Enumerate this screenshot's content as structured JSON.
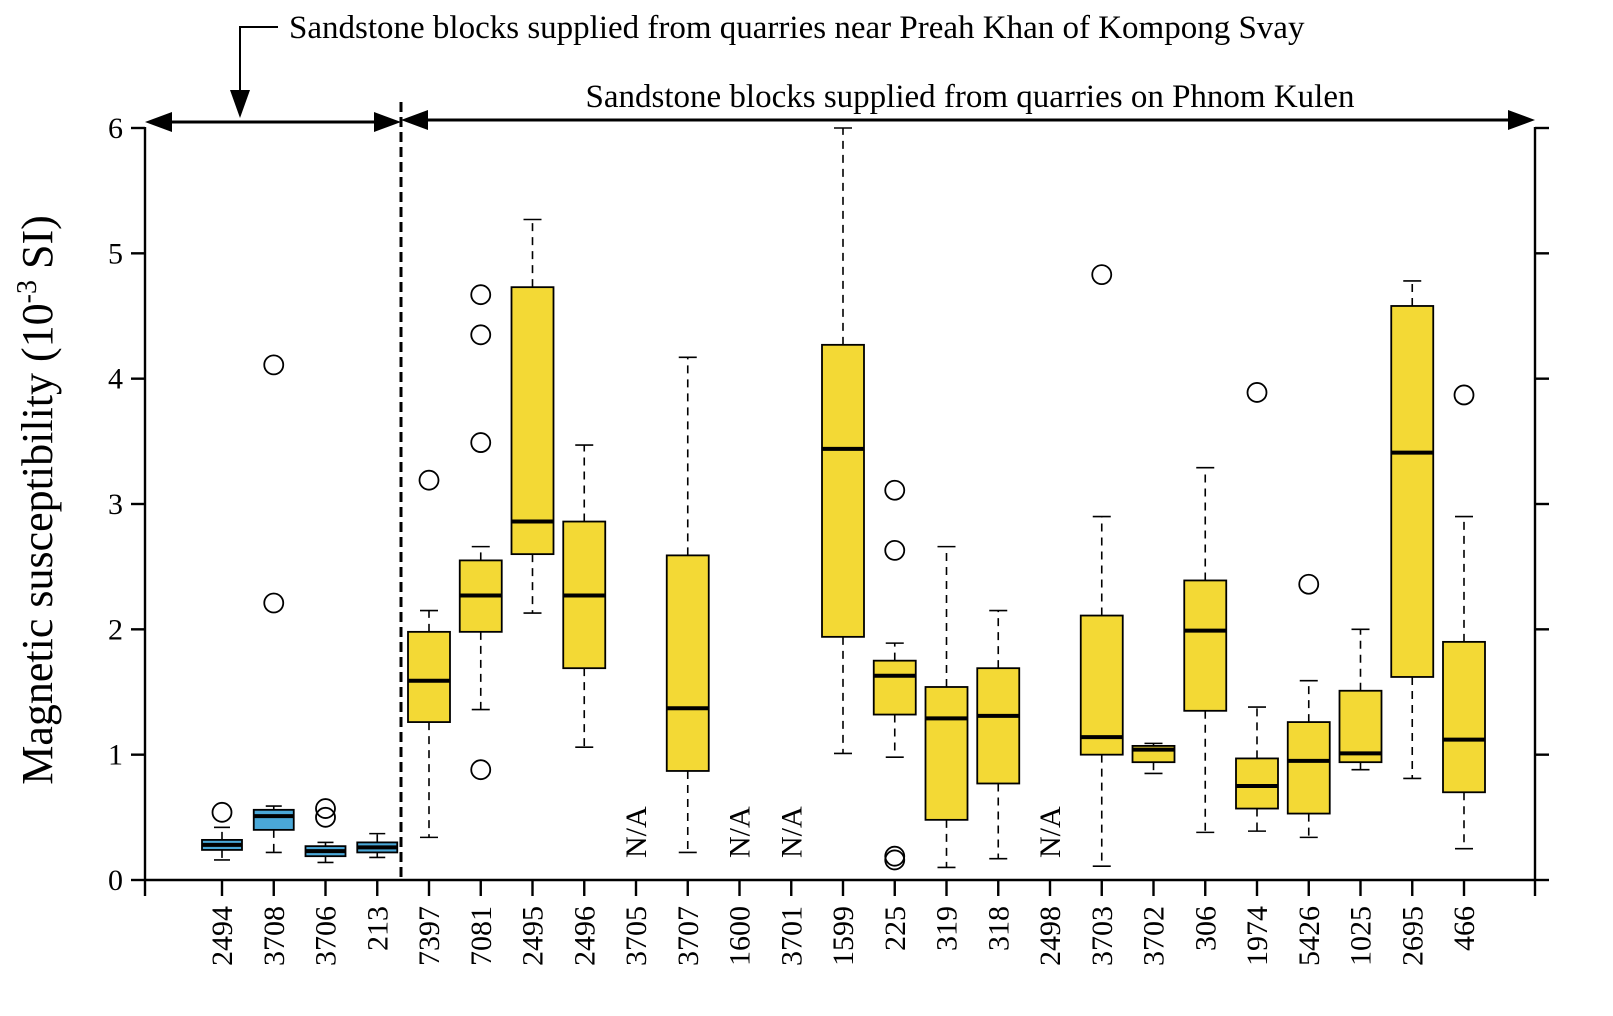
{
  "chart_data": {
    "type": "box",
    "ylabel": "Magnetic susceptibility (10",
    "ylabel_sup": "-3",
    "ylabel_unit": " SI)",
    "ylim": [
      0,
      6
    ],
    "yticks": [
      "0",
      "1",
      "2",
      "3",
      "4",
      "5",
      "6"
    ],
    "groups": [
      {
        "name": "Sandstone blocks supplied from quarries near Preah Khan of Kompong Svay",
        "color": "#4aa8d8",
        "categories": [
          "2494",
          "3708",
          "3706",
          "213"
        ]
      },
      {
        "name": "Sandstone blocks supplied from quarries on Phnom Kulen",
        "color": "#f3d935",
        "categories": [
          "7397",
          "7081",
          "2495",
          "2496",
          "3705",
          "3707",
          "1600",
          "3701",
          "1599",
          "225",
          "319",
          "318",
          "2498",
          "3703",
          "3702",
          "306",
          "1974",
          "5426",
          "1025",
          "2695",
          "466"
        ]
      }
    ],
    "na_text": "N/A",
    "boxes": [
      {
        "label": "2494",
        "group": 0,
        "min": 0.16,
        "q1": 0.24,
        "median": 0.28,
        "q3": 0.32,
        "max": 0.42,
        "outliers": [
          0.54
        ]
      },
      {
        "label": "3708",
        "group": 0,
        "min": 0.22,
        "q1": 0.4,
        "median": 0.51,
        "q3": 0.56,
        "max": 0.59,
        "outliers": [
          2.21,
          4.11
        ]
      },
      {
        "label": "3706",
        "group": 0,
        "min": 0.14,
        "q1": 0.19,
        "median": 0.23,
        "q3": 0.27,
        "max": 0.3,
        "outliers": [
          0.5,
          0.57
        ]
      },
      {
        "label": "213",
        "group": 0,
        "min": 0.18,
        "q1": 0.22,
        "median": 0.26,
        "q3": 0.3,
        "max": 0.37,
        "outliers": []
      },
      {
        "label": "7397",
        "group": 1,
        "min": 0.34,
        "q1": 1.26,
        "median": 1.59,
        "q3": 1.98,
        "max": 2.15,
        "outliers": [
          3.19
        ]
      },
      {
        "label": "7081",
        "group": 1,
        "min": 1.36,
        "q1": 1.98,
        "median": 2.27,
        "q3": 2.55,
        "max": 2.66,
        "outliers": [
          0.88,
          3.49,
          4.35,
          4.67
        ]
      },
      {
        "label": "2495",
        "group": 1,
        "min": 2.13,
        "q1": 2.6,
        "median": 2.86,
        "q3": 4.73,
        "max": 5.27,
        "outliers": []
      },
      {
        "label": "2496",
        "group": 1,
        "min": 1.06,
        "q1": 1.69,
        "median": 2.27,
        "q3": 2.86,
        "max": 3.47,
        "outliers": []
      },
      {
        "label": "3705",
        "group": 1,
        "na": true
      },
      {
        "label": "3707",
        "group": 1,
        "min": 0.22,
        "q1": 0.87,
        "median": 1.37,
        "q3": 2.59,
        "max": 4.17,
        "outliers": []
      },
      {
        "label": "1600",
        "group": 1,
        "na": true
      },
      {
        "label": "3701",
        "group": 1,
        "na": true
      },
      {
        "label": "1599",
        "group": 1,
        "min": 1.01,
        "q1": 1.94,
        "median": 3.44,
        "q3": 4.27,
        "max": 6.0,
        "outliers": []
      },
      {
        "label": "225",
        "group": 1,
        "min": 0.98,
        "q1": 1.32,
        "median": 1.63,
        "q3": 1.75,
        "max": 1.89,
        "outliers": [
          0.16,
          0.19,
          2.63,
          3.11
        ]
      },
      {
        "label": "319",
        "group": 1,
        "min": 0.1,
        "q1": 0.48,
        "median": 1.29,
        "q3": 1.54,
        "max": 2.66,
        "outliers": []
      },
      {
        "label": "318",
        "group": 1,
        "min": 0.17,
        "q1": 0.77,
        "median": 1.31,
        "q3": 1.69,
        "max": 2.15,
        "outliers": []
      },
      {
        "label": "2498",
        "group": 1,
        "na": true
      },
      {
        "label": "3703",
        "group": 1,
        "min": 0.11,
        "q1": 1.0,
        "median": 1.14,
        "q3": 2.11,
        "max": 2.9,
        "outliers": [
          4.83
        ]
      },
      {
        "label": "3702",
        "group": 1,
        "min": 0.85,
        "q1": 0.94,
        "median": 1.04,
        "q3": 1.07,
        "max": 1.09,
        "outliers": []
      },
      {
        "label": "306",
        "group": 1,
        "min": 0.38,
        "q1": 1.35,
        "median": 1.99,
        "q3": 2.39,
        "max": 3.29,
        "outliers": []
      },
      {
        "label": "1974",
        "group": 1,
        "min": 0.39,
        "q1": 0.57,
        "median": 0.75,
        "q3": 0.97,
        "max": 1.38,
        "outliers": [
          3.89
        ]
      },
      {
        "label": "5426",
        "group": 1,
        "min": 0.34,
        "q1": 0.53,
        "median": 0.95,
        "q3": 1.26,
        "max": 1.59,
        "outliers": [
          2.36
        ]
      },
      {
        "label": "1025",
        "group": 1,
        "min": 0.88,
        "q1": 0.94,
        "median": 1.01,
        "q3": 1.51,
        "max": 2.0,
        "outliers": []
      },
      {
        "label": "2695",
        "group": 1,
        "min": 0.81,
        "q1": 1.62,
        "median": 3.41,
        "q3": 4.58,
        "max": 4.78,
        "outliers": []
      },
      {
        "label": "466",
        "group": 1,
        "min": 0.25,
        "q1": 0.7,
        "median": 1.12,
        "q3": 1.9,
        "max": 2.9,
        "outliers": [
          3.87
        ]
      }
    ]
  }
}
